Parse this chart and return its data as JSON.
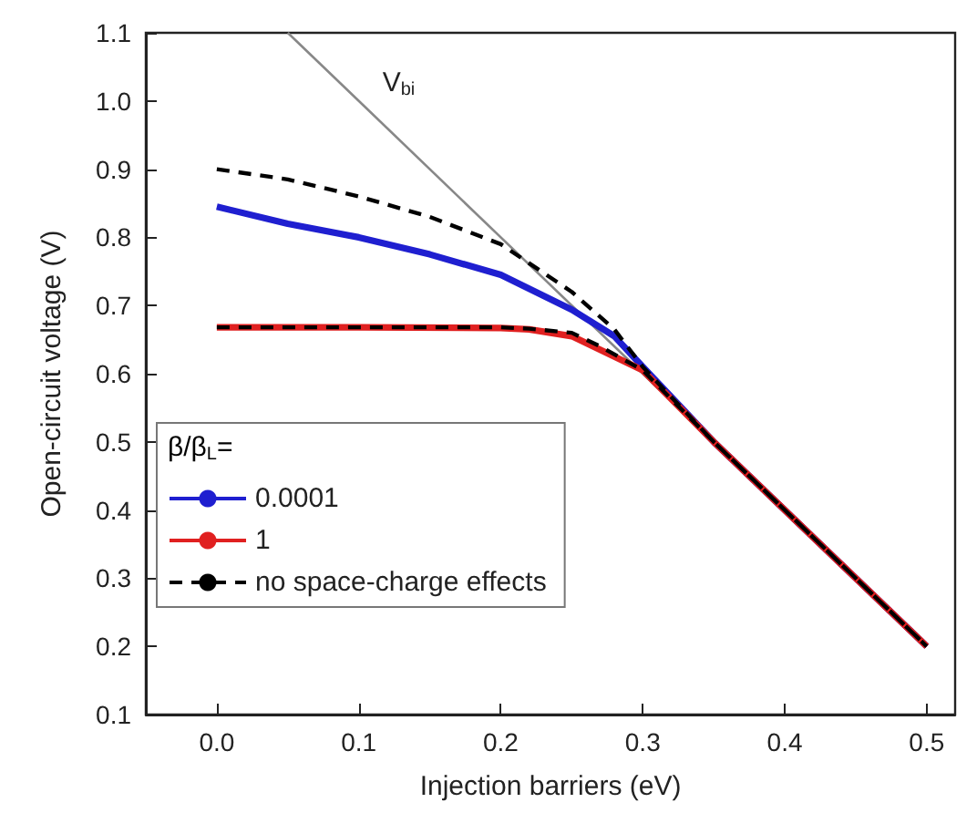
{
  "chart_data": {
    "type": "line",
    "xlabel": "Injection barriers (eV)",
    "ylabel": "Open-circuit voltage (V)",
    "legend_title": "β/β$_{L}$=",
    "xlim": [
      -0.05,
      0.52
    ],
    "ylim": [
      0.1,
      1.1
    ],
    "xticks": [
      {
        "value": 0,
        "label": "0.0"
      },
      0.1,
      0.2,
      0.3,
      0.4,
      0.5
    ],
    "yticks": [
      0.1,
      0.2,
      0.3,
      0.4,
      0.5,
      0.6,
      0.7,
      0.8,
      0.9,
      {
        "value": 1,
        "label": "1.0"
      },
      1.1
    ],
    "grid": false,
    "legend": "bottom left",
    "marker": "none",
    "series": [
      {
        "name": "V$_{bi}$",
        "color": "#888888",
        "line_style": "solid",
        "x": [
          0.05,
          0.1,
          0.5
        ],
        "values": [
          1.1,
          1.0,
          0.2
        ]
      },
      {
        "name": "0.0001",
        "color": "#1f1fd0",
        "line_style": "solid",
        "x": [
          0,
          0.05,
          0.1,
          0.15,
          0.2,
          0.25,
          0.28,
          0.3,
          0.35,
          0.4,
          0.5
        ],
        "values": [
          0.845,
          0.82,
          0.8,
          0.775,
          0.745,
          0.694,
          0.655,
          0.61,
          0.5,
          0.4,
          0.2
        ]
      },
      {
        "name": "1",
        "color": "#e02020",
        "line_style": "solid",
        "x": [
          0,
          0.1,
          0.2,
          0.22,
          0.25,
          0.27,
          0.3,
          0.35,
          0.4,
          0.5
        ],
        "values": [
          0.668,
          0.668,
          0.667,
          0.665,
          0.655,
          0.635,
          0.605,
          0.5,
          0.4,
          0.2
        ]
      },
      {
        "name": "no space-charge effects",
        "color": "#000000",
        "line_style": "dashed",
        "x": [
          0,
          0.05,
          0.1,
          0.15,
          0.2,
          0.25,
          0.28,
          0.3,
          0.35,
          0.4,
          0.5,
          null,
          0,
          0.1,
          0.2,
          0.22,
          0.25,
          0.27,
          0.3,
          0.35,
          0.4,
          0.5
        ],
        "values": [
          0.9,
          0.885,
          0.86,
          0.83,
          0.79,
          0.72,
          0.665,
          0.61,
          0.5,
          0.4,
          0.2,
          null,
          0.668,
          0.668,
          0.668,
          0.666,
          0.66,
          0.64,
          0.605,
          0.5,
          0.4,
          0.2
        ]
      }
    ]
  }
}
